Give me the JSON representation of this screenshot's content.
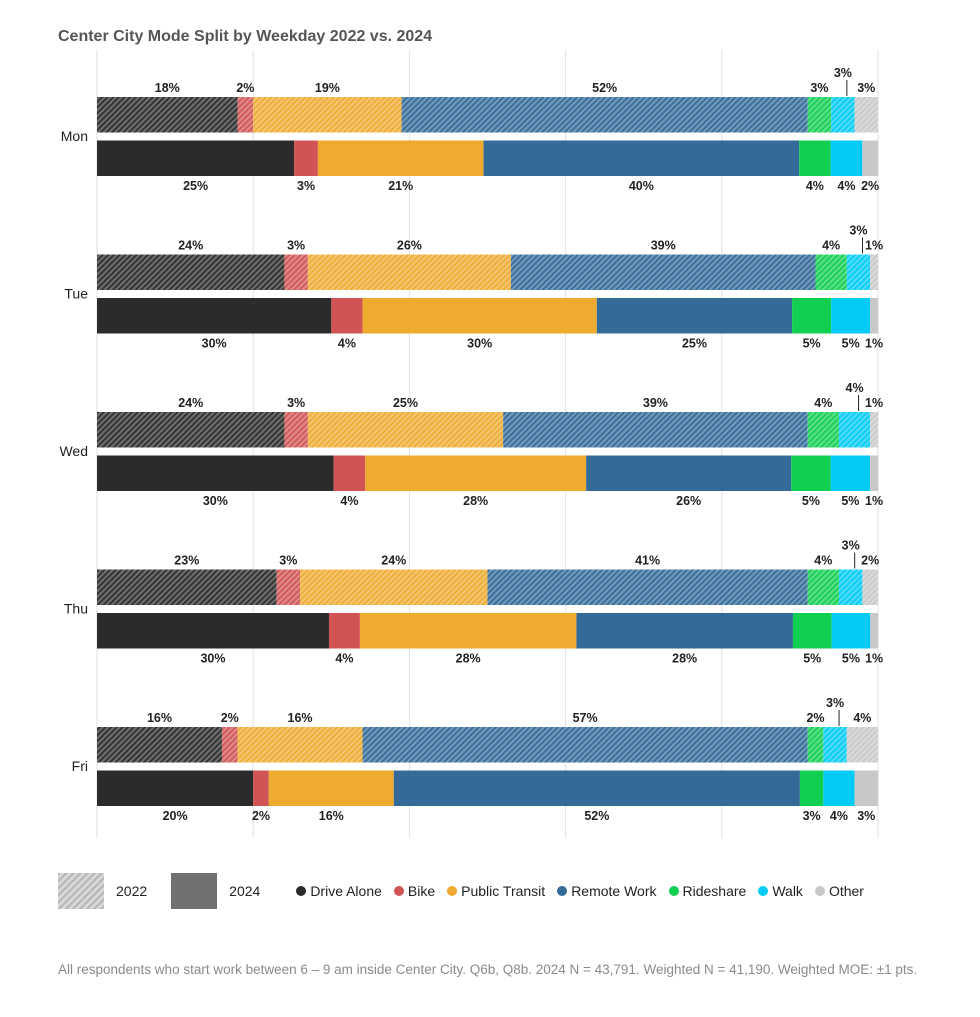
{
  "title": "Center City Mode Split by Weekday 2022 vs. 2024",
  "chart_data": {
    "type": "bar",
    "orientation": "horizontal",
    "stacked": true,
    "title": "Center City Mode Split by Weekday 2022 vs. 2024",
    "categories": [
      "Mon",
      "Tue",
      "Wed",
      "Thu",
      "Fri"
    ],
    "modes": [
      "Drive Alone",
      "Bike",
      "Public Transit",
      "Remote Work",
      "Rideshare",
      "Walk",
      "Other"
    ],
    "colors": [
      "#2b2b2b",
      "#d05454",
      "#eeab30",
      "#336a98",
      "#12cf52",
      "#00cbf5",
      "#c8c8c8"
    ],
    "years": [
      "2022",
      "2024"
    ],
    "values": {
      "2022": [
        [
          18,
          2,
          19,
          52,
          3,
          3,
          3
        ],
        [
          24,
          3,
          26,
          39,
          4,
          3,
          1
        ],
        [
          24,
          3,
          25,
          39,
          4,
          4,
          1
        ],
        [
          23,
          3,
          24,
          41,
          4,
          3,
          2
        ],
        [
          16,
          2,
          16,
          57,
          2,
          3,
          4
        ]
      ],
      "2024": [
        [
          25,
          3,
          21,
          40,
          4,
          4,
          2
        ],
        [
          30,
          4,
          30,
          25,
          5,
          5,
          1
        ],
        [
          30,
          4,
          28,
          26,
          5,
          5,
          1
        ],
        [
          30,
          4,
          28,
          28,
          5,
          5,
          1
        ],
        [
          20,
          2,
          16,
          52,
          3,
          4,
          3
        ]
      ]
    },
    "unit": "%",
    "xlim": [
      0,
      100
    ],
    "grid": true,
    "legend_position": "bottom"
  },
  "legend": {
    "y2022": "2022",
    "y2024": "2024"
  },
  "footnote": "All respondents who start work between 6 – 9 am inside Center City. Q6b, Q8b. 2024 N = 43,791. Weighted N = 41,190. Weighted MOE: ±1 pts."
}
